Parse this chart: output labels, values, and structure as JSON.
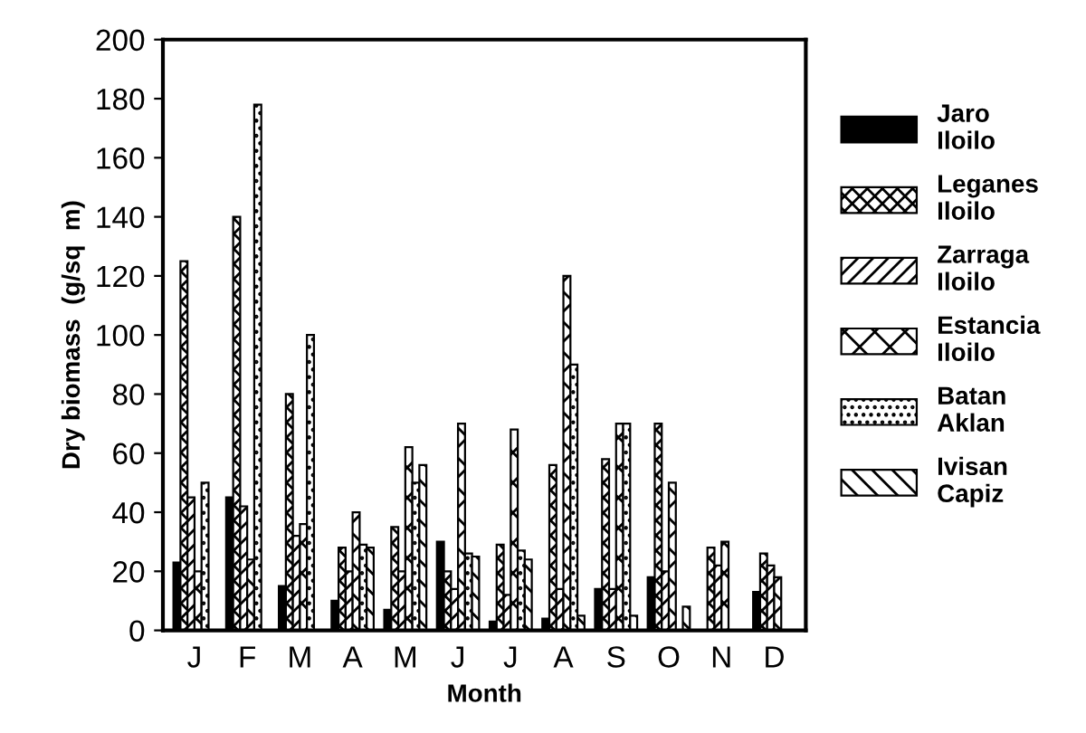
{
  "chart_data": {
    "type": "bar",
    "xlabel": "Month",
    "ylabel": "Dry biomass  (g/sq  m)",
    "categories": [
      "J",
      "F",
      "M",
      "A",
      "M",
      "J",
      "J",
      "A",
      "S",
      "O",
      "N",
      "D"
    ],
    "series": [
      {
        "name": "Jaro\nIloilo",
        "color": "#000000",
        "values": [
          23,
          45,
          15,
          10,
          7,
          30,
          3,
          4,
          14,
          18,
          null,
          13
        ]
      },
      {
        "name": "Leganes\nIloilo",
        "color": "#000000",
        "values": [
          125,
          140,
          80,
          28,
          35,
          20,
          29,
          56,
          58,
          70,
          28,
          26
        ]
      },
      {
        "name": "Zarraga\nIloilo",
        "color": "#000000",
        "values": [
          45,
          42,
          32,
          20,
          20,
          14,
          12,
          14,
          14,
          20,
          22,
          22
        ]
      },
      {
        "name": "Estancia\nIloilo",
        "color": "#000000",
        "values": [
          20,
          24,
          36,
          40,
          62,
          70,
          68,
          120,
          70,
          50,
          30,
          18
        ]
      },
      {
        "name": "Batan\nAklan",
        "color": "#000000",
        "values": [
          50,
          178,
          100,
          29,
          50,
          26,
          27,
          90,
          70,
          null,
          null,
          null
        ]
      },
      {
        "name": "Ivisan\nCapiz",
        "color": "#000000",
        "values": [
          null,
          null,
          null,
          28,
          56,
          25,
          24,
          5,
          5,
          8,
          null,
          null
        ]
      }
    ],
    "ylim": [
      0,
      200
    ],
    "yticks": [
      0,
      20,
      40,
      60,
      80,
      100,
      120,
      140,
      160,
      180,
      200
    ],
    "grid": false,
    "legend": "right"
  }
}
